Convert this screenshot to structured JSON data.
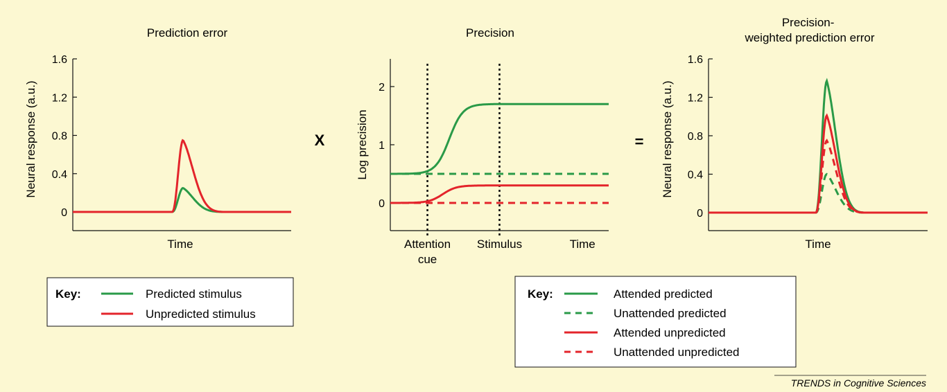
{
  "colors": {
    "background": "#fcf8d2",
    "predicted": "#2a9a48",
    "unpredicted": "#e3242b",
    "axis": "#111111",
    "key_box": "#ffffff"
  },
  "operators": {
    "times": "X",
    "equals": "="
  },
  "footer": {
    "source": "TRENDS in Cognitive Sciences"
  },
  "key_left": {
    "title": "Key:",
    "items": [
      {
        "label": "Predicted stimulus",
        "color": "predicted",
        "style": "solid"
      },
      {
        "label": "Unpredicted stimulus",
        "color": "unpredicted",
        "style": "solid"
      }
    ]
  },
  "key_right": {
    "title": "Key:",
    "items": [
      {
        "label": "Attended predicted",
        "color": "predicted",
        "style": "solid"
      },
      {
        "label": "Unattended predicted",
        "color": "predicted",
        "style": "dashed"
      },
      {
        "label": "Attended unpredicted",
        "color": "unpredicted",
        "style": "solid"
      },
      {
        "label": "Unattended unpredicted",
        "color": "unpredicted",
        "style": "dashed"
      }
    ]
  },
  "chart_data": [
    {
      "type": "line",
      "title": "Prediction error",
      "xlabel": "Time",
      "ylabel": "Neural response (a.u.)",
      "ylim": [
        -0.2,
        1.6
      ],
      "yticks": [
        "0",
        "0.4",
        "0.8",
        "1.2",
        "1.6"
      ],
      "ytick_values": [
        0,
        0.4,
        0.8,
        1.2,
        1.6
      ],
      "xlim": [
        0,
        10
      ],
      "series": [
        {
          "name": "Predicted stimulus",
          "color": "predicted",
          "style": "solid",
          "peak_x": 5.05,
          "peak_y": 0.25,
          "onset_x": 4.55,
          "end_x": 6.9
        },
        {
          "name": "Unpredicted stimulus",
          "color": "unpredicted",
          "style": "solid",
          "peak_x": 5.05,
          "peak_y": 0.75,
          "onset_x": 4.55,
          "end_x": 6.9
        }
      ]
    },
    {
      "type": "line",
      "title": "Precision",
      "ylabel": "Log precision",
      "ylim": [
        -0.45,
        2.45
      ],
      "yticks": [
        "0",
        "1",
        "2"
      ],
      "ytick_values": [
        0,
        1,
        2
      ],
      "xlim": [
        0,
        10
      ],
      "x_annotations": [
        {
          "label": [
            "Attention",
            "cue"
          ],
          "x": 1.7
        },
        {
          "label": [
            "Stimulus"
          ],
          "x": 5.0
        },
        {
          "label": [
            "Time"
          ],
          "x": 8.8
        }
      ],
      "markers": [
        1.7,
        5.0
      ],
      "series": [
        {
          "color": "predicted",
          "style": "solid",
          "y_start": 0.5,
          "y_end": 1.7,
          "transition_x": 2.7
        },
        {
          "color": "predicted",
          "style": "dashed",
          "y_start": 0.5,
          "y_end": 0.5,
          "transition_x": 2.7
        },
        {
          "color": "unpredicted",
          "style": "solid",
          "y_start": 0.0,
          "y_end": 0.3,
          "transition_x": 2.4
        },
        {
          "color": "unpredicted",
          "style": "dashed",
          "y_start": 0.0,
          "y_end": 0.0,
          "transition_x": 2.4
        }
      ]
    },
    {
      "type": "line",
      "title": "Precision-weighted prediction error",
      "xlabel": "Time",
      "ylabel": "Neural response (a.u.)",
      "ylim": [
        -0.2,
        1.6
      ],
      "yticks": [
        "0",
        "0.4",
        "0.8",
        "1.2",
        "1.6"
      ],
      "ytick_values": [
        0,
        0.4,
        0.8,
        1.2,
        1.6
      ],
      "xlim": [
        0,
        10
      ],
      "series": [
        {
          "name": "Attended predicted",
          "color": "predicted",
          "style": "solid",
          "peak_x": 5.4,
          "peak_y": 1.37,
          "onset_x": 4.9,
          "end_x": 7.1
        },
        {
          "name": "Unattended predicted",
          "color": "predicted",
          "style": "dashed",
          "peak_x": 5.4,
          "peak_y": 0.4,
          "onset_x": 4.9,
          "end_x": 7.1
        },
        {
          "name": "Attended unpredicted",
          "color": "unpredicted",
          "style": "solid",
          "peak_x": 5.4,
          "peak_y": 1.01,
          "onset_x": 4.9,
          "end_x": 7.1
        },
        {
          "name": "Unattended unpredicted",
          "color": "unpredicted",
          "style": "dashed",
          "peak_x": 5.4,
          "peak_y": 0.75,
          "onset_x": 4.9,
          "end_x": 7.1
        }
      ]
    }
  ]
}
